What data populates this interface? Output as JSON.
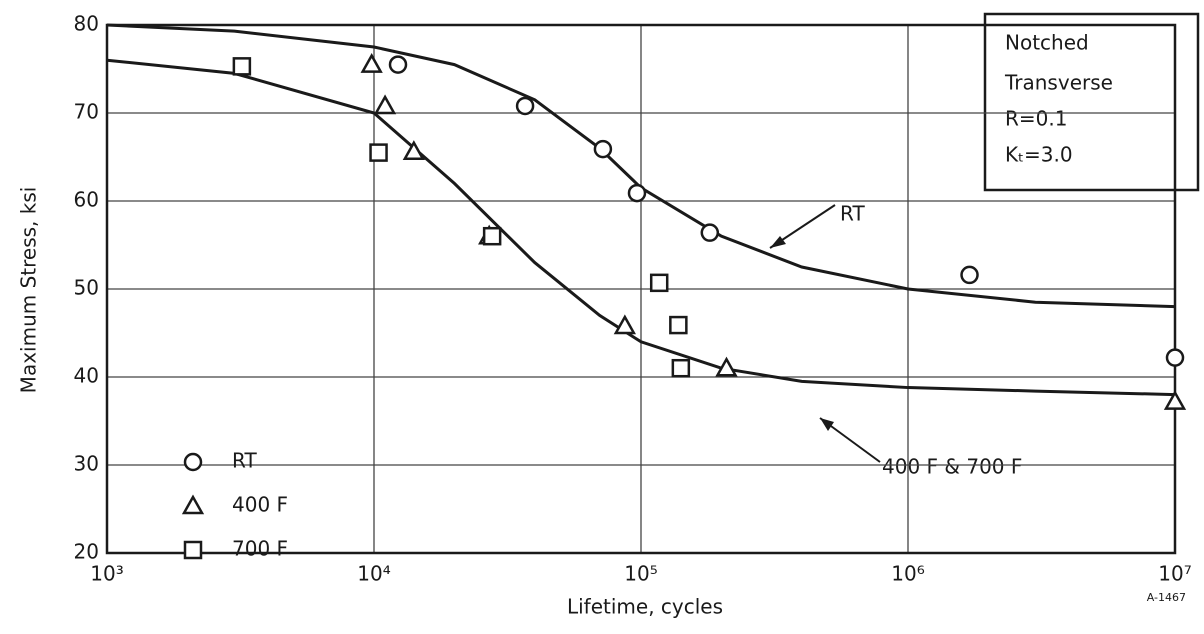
{
  "chart_data": {
    "type": "scatter",
    "xlabel": "Lifetime, cycles",
    "ylabel": "Maximum Stress, ksi",
    "xlim": [
      1000,
      10000000
    ],
    "ylim": [
      20,
      80
    ],
    "xlog": true,
    "grid": true,
    "xticks": [
      {
        "value": 1000,
        "label": "10³"
      },
      {
        "value": 10000,
        "label": "10⁴"
      },
      {
        "value": 100000,
        "label": "10⁵"
      },
      {
        "value": 1000000,
        "label": "10⁶"
      },
      {
        "value": 10000000,
        "label": "10⁷"
      }
    ],
    "yticks": [
      20,
      30,
      40,
      50,
      60,
      70,
      80
    ],
    "legend": "lower left",
    "annotations": [
      "Notched",
      "Transverse",
      "R=0.1",
      "Kₜ=3.0"
    ],
    "figure_id": "A-1467",
    "series": [
      {
        "name": "RT",
        "marker": "circle",
        "color": "#1a1a1a",
        "x": [
          12300,
          36800,
          72000,
          96600,
          181000,
          1700000,
          10000000
        ],
        "values": [
          75.5,
          70.8,
          65.9,
          60.9,
          56.4,
          51.6,
          42.2
        ]
      },
      {
        "name": "400 F",
        "marker": "triangle",
        "color": "#1a1a1a",
        "x": [
          9800,
          11000,
          14100,
          27000,
          87000,
          209000,
          10000000
        ],
        "values": [
          75.5,
          70.8,
          65.6,
          56.0,
          45.8,
          41.0,
          37.2
        ]
      },
      {
        "name": "700 F",
        "marker": "square",
        "color": "#1a1a1a",
        "x": [
          3200,
          10400,
          27700,
          117000,
          138000,
          141000
        ],
        "values": [
          75.3,
          65.5,
          56.0,
          50.7,
          45.9,
          41.0
        ]
      }
    ],
    "curves": [
      {
        "name": "RT",
        "color": "#1a1a1a",
        "x": [
          1000,
          3000,
          10000,
          20000,
          40000,
          70000,
          100000,
          200000,
          400000,
          1000000,
          3000000,
          10000000
        ],
        "values": [
          80,
          79.3,
          77.5,
          75.5,
          71.5,
          66,
          61.5,
          56,
          52.5,
          50,
          48.5,
          48
        ]
      },
      {
        "name": "400 F & 700 F",
        "color": "#1a1a1a",
        "x": [
          1000,
          3000,
          10000,
          20000,
          40000,
          70000,
          100000,
          200000,
          400000,
          1000000,
          3000000,
          10000000
        ],
        "values": [
          76,
          74.5,
          70,
          62,
          53,
          47,
          44,
          41,
          39.5,
          38.8,
          38.4,
          38
        ]
      }
    ]
  }
}
